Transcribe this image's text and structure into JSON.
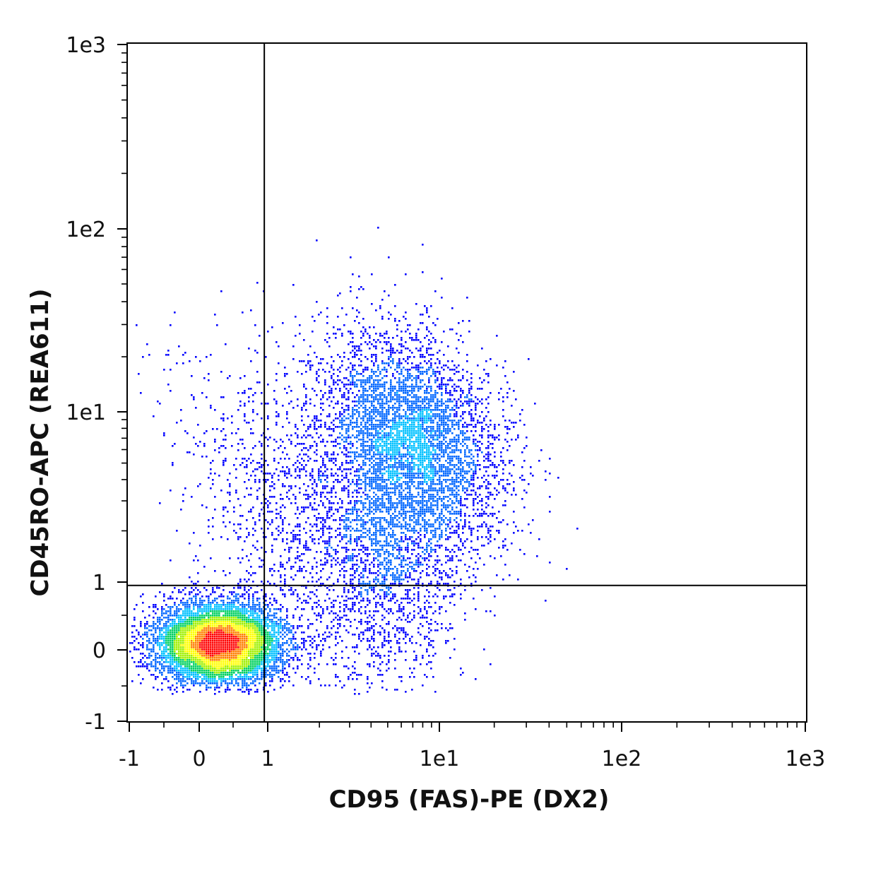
{
  "chart_data": {
    "type": "scatter",
    "subtype": "flow-cytometry density plot (biexponential axes)",
    "title": "",
    "xlabel": "CD95 (FAS)-PE (DX2)",
    "ylabel": "CD45RO-APC (REA611)",
    "x_scale": "biexponential",
    "y_scale": "biexponential",
    "xlim": [
      -1,
      1000
    ],
    "ylim": [
      -1,
      1000
    ],
    "x_ticks": [
      {
        "value": -1,
        "label": "-1"
      },
      {
        "value": 0,
        "label": "0"
      },
      {
        "value": 1,
        "label": "1"
      },
      {
        "value": 10,
        "label": "1e1"
      },
      {
        "value": 100,
        "label": "1e2"
      },
      {
        "value": 1000,
        "label": "1e3"
      }
    ],
    "y_ticks": [
      {
        "value": -1,
        "label": "-1"
      },
      {
        "value": 0,
        "label": "0"
      },
      {
        "value": 1,
        "label": "1"
      },
      {
        "value": 10,
        "label": "1e1"
      },
      {
        "value": 100,
        "label": "1e2"
      },
      {
        "value": 1000,
        "label": "1e3"
      }
    ],
    "quadrant_gates": {
      "x": 0.95,
      "y": 0.95
    },
    "populations": [
      {
        "x": 0.3,
        "y": 0.1,
        "fraction": 0.5
      },
      {
        "x": 7,
        "y": 7,
        "fraction": 0.3
      },
      {
        "x": 5,
        "y": 1.5,
        "fraction": 0.12
      },
      {
        "x": 1.5,
        "y": 2.5,
        "fraction": 0.08
      }
    ],
    "density_colors": [
      "#0000ff",
      "#0066ff",
      "#00c0ff",
      "#00d060",
      "#a0f000",
      "#ffff00",
      "#ff8000",
      "#ff0000"
    ],
    "grid": false,
    "legend": "none"
  }
}
